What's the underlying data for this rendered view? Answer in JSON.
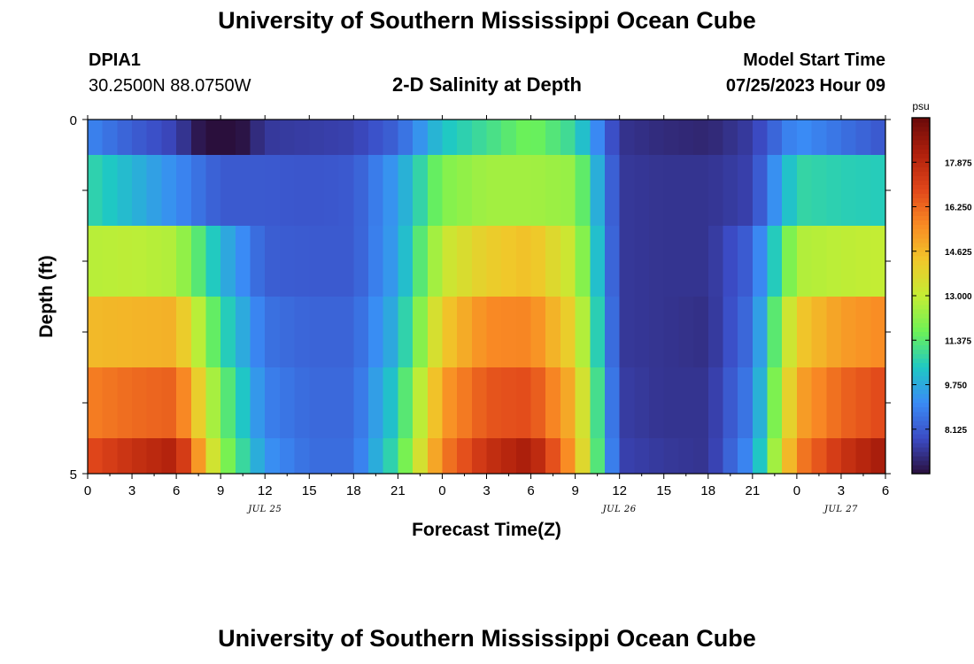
{
  "header": {
    "title": "University of Southern Mississippi Ocean Cube",
    "station": "DPIA1",
    "coordinates": "30.2500N  88.0750W",
    "plot_title": "2-D Salinity at Depth",
    "model_start_label": "Model Start Time",
    "model_start_value": "07/25/2023 Hour 09"
  },
  "footer": {
    "title": "University of Southern Mississippi Ocean Cube"
  },
  "chart_data": {
    "type": "heatmap",
    "title": "2-D Salinity at Depth",
    "xlabel": "Forecast Time(Z)",
    "ylabel": "Depth (ft)",
    "x_tick_labels": [
      "0",
      "3",
      "6",
      "9",
      "12",
      "15",
      "18",
      "21",
      "0",
      "3",
      "6",
      "9",
      "12",
      "15",
      "18",
      "21",
      "0",
      "3",
      "6"
    ],
    "x_minor_ticks_per_major": 1,
    "date_labels": [
      {
        "text": "JUL 25",
        "at_tick": 4
      },
      {
        "text": "JUL 26",
        "at_tick": 12
      },
      {
        "text": "JUL 27",
        "at_tick": 17
      }
    ],
    "y_tick_labels": [
      {
        "text": "0",
        "value": 0
      },
      {
        "text": "5",
        "value": 5
      }
    ],
    "ylim": [
      0,
      5
    ],
    "x_hours": [
      0,
      3,
      6,
      9,
      12,
      15,
      18,
      21,
      24,
      27,
      30,
      33,
      36,
      39,
      42,
      45,
      48,
      51,
      54
    ],
    "row_bands_ft": [
      [
        0,
        0.5
      ],
      [
        0.5,
        1.5
      ],
      [
        1.5,
        2.5
      ],
      [
        2.5,
        3.5
      ],
      [
        3.5,
        4.5
      ],
      [
        4.5,
        5
      ]
    ],
    "salinity_psu": [
      [
        9.0,
        8.2,
        7.6,
        5.8,
        7.4,
        7.5,
        7.6,
        8.3,
        10.3,
        11.0,
        11.8,
        10.8,
        7.3,
        7.1,
        7.0,
        7.5,
        9.2,
        8.6,
        8.0
      ],
      [
        10.8,
        10.0,
        9.1,
        8.1,
        8.1,
        8.0,
        8.1,
        9.5,
        12.0,
        12.5,
        12.5,
        12.3,
        7.4,
        7.3,
        7.3,
        7.6,
        10.8,
        10.6,
        10.5
      ],
      [
        12.8,
        12.9,
        12.7,
        10.0,
        8.2,
        8.1,
        8.1,
        9.6,
        13.1,
        14.1,
        14.5,
        13.0,
        7.4,
        7.3,
        7.3,
        8.3,
        12.7,
        12.9,
        13.0
      ],
      [
        14.6,
        14.7,
        14.8,
        10.9,
        8.6,
        8.3,
        8.3,
        10.0,
        14.2,
        15.6,
        15.7,
        13.8,
        7.4,
        7.3,
        7.2,
        8.6,
        14.2,
        15.2,
        15.6
      ],
      [
        15.8,
        16.2,
        16.4,
        11.8,
        8.9,
        8.4,
        8.4,
        10.6,
        15.2,
        16.6,
        16.8,
        14.6,
        7.5,
        7.3,
        7.3,
        8.9,
        15.0,
        16.3,
        16.9
      ],
      [
        16.8,
        17.6,
        18.2,
        12.4,
        9.3,
        8.5,
        8.5,
        11.1,
        15.8,
        17.6,
        18.4,
        15.0,
        7.6,
        7.4,
        7.3,
        9.3,
        15.7,
        17.5,
        18.5
      ]
    ],
    "colorbar": {
      "unit": "psu",
      "min": 6.5,
      "max": 19.5,
      "tick_labels": [
        "17.875",
        "16.250",
        "14.625",
        "13.000",
        "11.375",
        "9.750",
        "8.125"
      ],
      "tick_values": [
        17.875,
        16.25,
        14.625,
        13.0,
        11.375,
        9.75,
        8.125
      ]
    },
    "colors": {
      "stops": [
        "#2a0f3c",
        "#3b4bc4",
        "#3a8bf5",
        "#1fc8c4",
        "#6cf257",
        "#c4ed34",
        "#f0c82a",
        "#f98a24",
        "#e0461a",
        "#b0200c",
        "#6a0a0a"
      ]
    }
  }
}
